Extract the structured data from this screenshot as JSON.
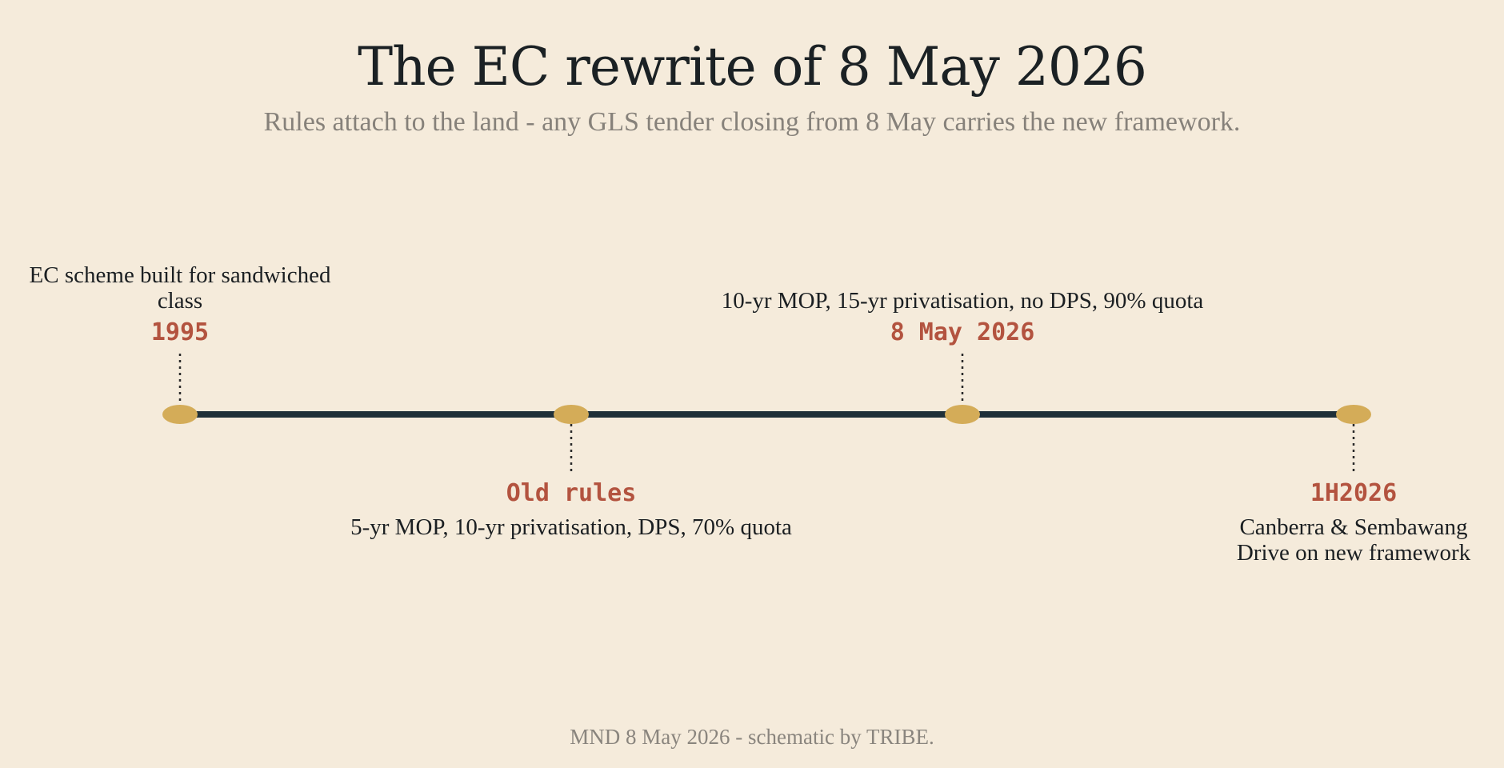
{
  "title": "The EC rewrite of 8 May 2026",
  "subtitle": "Rules attach to the land - any GLS tender closing from 8 May carries the new framework.",
  "source": "MND 8 May 2026 - schematic by TRIBE.",
  "colors": {
    "background": "#F5EBDB",
    "axis": "#1F3038",
    "marker": "#D4AC58",
    "date": "#B3533F",
    "text": "#1B1F22",
    "muted": "#86817A"
  },
  "events": [
    {
      "date": "1995",
      "text": "EC scheme built for sandwiched class",
      "side": "above"
    },
    {
      "date": "Old rules",
      "text": "5-yr MOP, 10-yr privatisation, DPS, 70% quota",
      "side": "below"
    },
    {
      "date": "8 May 2026",
      "text": "10-yr MOP, 15-yr privatisation, no DPS, 90% quota",
      "side": "above"
    },
    {
      "date": "1H2026",
      "text": "Canberra & Sembawang Drive on new framework",
      "side": "below"
    }
  ]
}
